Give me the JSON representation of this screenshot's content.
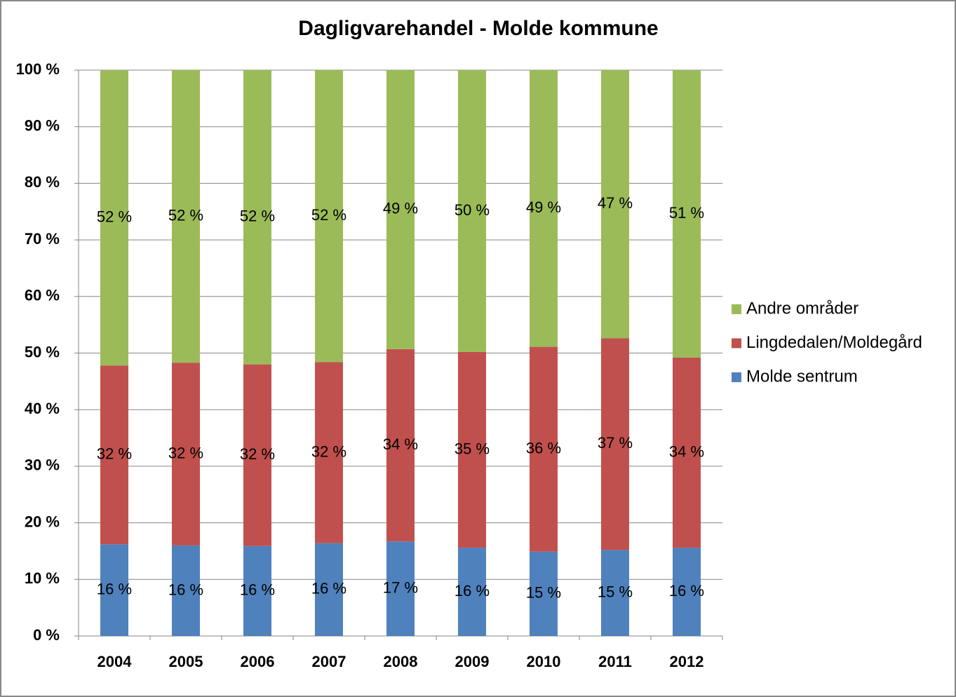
{
  "chart_data": {
    "type": "stacked_bar",
    "title": "Dagligvarehandel - Molde kommune",
    "categories": [
      "2004",
      "2005",
      "2006",
      "2007",
      "2008",
      "2009",
      "2010",
      "2011",
      "2012"
    ],
    "series": [
      {
        "name": "Molde sentrum",
        "color": "#4f81bd",
        "values": [
          16.2,
          16.0,
          15.9,
          16.4,
          16.7,
          15.6,
          14.9,
          15.2,
          15.6
        ],
        "value_labels": [
          "16 %",
          "16 %",
          "16 %",
          "16 %",
          "17 %",
          "16 %",
          "15 %",
          "15 %",
          "16 %"
        ]
      },
      {
        "name": "Lingdedalen/Moldegård",
        "color": "#c0504d",
        "values": [
          31.6,
          32.3,
          32.1,
          32.0,
          34.0,
          34.6,
          36.2,
          37.4,
          33.6
        ],
        "value_labels": [
          "32 %",
          "32 %",
          "32 %",
          "32 %",
          "34 %",
          "35 %",
          "36 %",
          "37 %",
          "34 %"
        ]
      },
      {
        "name": "Andre områder",
        "color": "#9bbb59",
        "values": [
          52.2,
          51.7,
          52.0,
          51.6,
          49.3,
          49.8,
          48.9,
          47.4,
          50.8
        ],
        "value_labels": [
          "52 %",
          "52 %",
          "52 %",
          "52 %",
          "49 %",
          "50 %",
          "49 %",
          "47 %",
          "51 %"
        ]
      }
    ],
    "ylim": [
      0,
      100
    ],
    "yticks": [
      {
        "value": 0,
        "label": "0 %"
      },
      {
        "value": 10,
        "label": "10 %"
      },
      {
        "value": 20,
        "label": "20 %"
      },
      {
        "value": 30,
        "label": "30 %"
      },
      {
        "value": 40,
        "label": "40 %"
      },
      {
        "value": 50,
        "label": "50 %"
      },
      {
        "value": 60,
        "label": "60 %"
      },
      {
        "value": 70,
        "label": "70 %"
      },
      {
        "value": 80,
        "label": "80 %"
      },
      {
        "value": 90,
        "label": "90 %"
      },
      {
        "value": 100,
        "label": "100 %"
      }
    ],
    "grid": true,
    "legend": "right"
  }
}
